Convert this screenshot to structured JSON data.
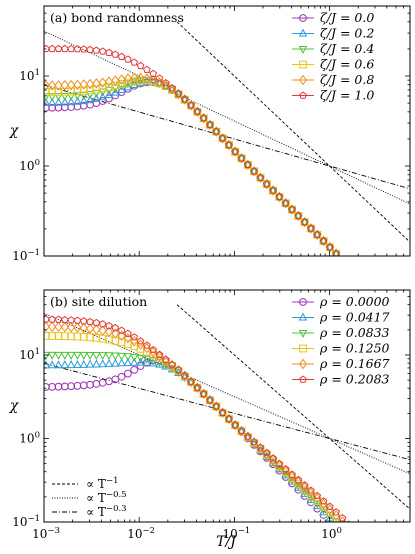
{
  "chart_data": [
    {
      "type": "scatter",
      "panel_label": "(a) bond randomness",
      "xlabel": "T/J",
      "ylabel": "χ",
      "xscale": "log",
      "yscale": "log",
      "xlim": [
        0.001,
        7
      ],
      "ylim": [
        0.1,
        60
      ],
      "grid": false,
      "legend_position": "top-right",
      "x_tick_labels": [
        "10^-3",
        "10^-2",
        "10^-1",
        "10^0"
      ],
      "y_tick_labels": [
        "10^-1",
        "10^0",
        "10^1"
      ],
      "series": [
        {
          "name": "ζ/J = 0.0",
          "color": "#9b30b8",
          "marker": "circle",
          "low_T_value": 4.4,
          "high_T_matched": true
        },
        {
          "name": "ζ/J = 0.2",
          "color": "#2e9ad6",
          "marker": "triangle-up",
          "low_T_value": 5.0,
          "high_T_matched": true
        },
        {
          "name": "ζ/J = 0.4",
          "color": "#4cc13a",
          "marker": "triangle-down",
          "low_T_value": 5.9,
          "high_T_matched": true
        },
        {
          "name": "ζ/J = 0.6",
          "color": "#e8c51c",
          "marker": "square",
          "low_T_value": 6.6,
          "high_T_matched": true
        },
        {
          "name": "ζ/J = 0.8",
          "color": "#f08d1a",
          "marker": "diamond",
          "low_T_value": 7.8,
          "high_T_matched": true
        },
        {
          "name": "ζ/J = 1.0",
          "color": "#e03b3b",
          "marker": "pentagon",
          "low_T_value": 20,
          "high_T_matched": true
        }
      ],
      "reference_lines": [
        {
          "label": "∝ T^-1",
          "exponent": -1,
          "style": "dashed"
        },
        {
          "label": "∝ T^-0.5",
          "exponent": -0.5,
          "style": "dotted"
        },
        {
          "label": "∝ T^-0.3",
          "exponent": -0.3,
          "style": "dashdot"
        }
      ]
    },
    {
      "type": "scatter",
      "panel_label": "(b) site dilution",
      "xlabel": "T/J",
      "ylabel": "χ",
      "xscale": "log",
      "yscale": "log",
      "xlim": [
        0.001,
        7
      ],
      "ylim": [
        0.1,
        60
      ],
      "grid": false,
      "legend_position": "top-right",
      "x_tick_labels": [
        "10^-3",
        "10^-2",
        "10^-1",
        "10^0"
      ],
      "y_tick_labels": [
        "10^-1",
        "10^0",
        "10^1"
      ],
      "series": [
        {
          "name": "ρ = 0.0000",
          "color": "#9b30b8",
          "marker": "circle",
          "low_T_value": 4.1
        },
        {
          "name": "ρ = 0.0417",
          "color": "#2e9ad6",
          "marker": "triangle-up",
          "low_T_value": 7.5
        },
        {
          "name": "ρ = 0.0833",
          "color": "#4cc13a",
          "marker": "triangle-down",
          "low_T_value": 10
        },
        {
          "name": "ρ = 0.1250",
          "color": "#e8c51c",
          "marker": "square",
          "low_T_value": 17
        },
        {
          "name": "ρ = 0.1667",
          "color": "#f08d1a",
          "marker": "diamond",
          "low_T_value": 22
        },
        {
          "name": "ρ = 0.2083",
          "color": "#e03b3b",
          "marker": "pentagon",
          "low_T_value": 27
        }
      ],
      "reference_lines": [
        {
          "label": "∝ T^-1",
          "exponent": -1,
          "style": "dashed"
        },
        {
          "label": "∝ T^-0.5",
          "exponent": -0.5,
          "style": "dotted"
        },
        {
          "label": "∝ T^-0.3",
          "exponent": -0.3,
          "style": "dashdot"
        }
      ],
      "reference_legend_position": "bottom-left"
    }
  ]
}
